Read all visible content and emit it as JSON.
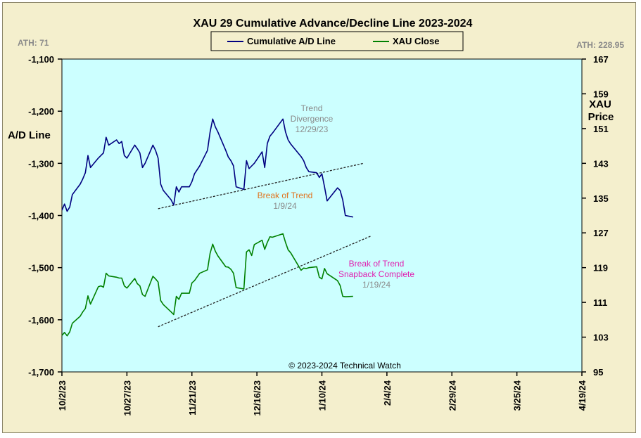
{
  "chart_data": {
    "type": "line",
    "title": "XAU 29 Cumulative  Advance/Decline  Line  2023-2024",
    "legend": {
      "placement": "top-center",
      "entries": [
        "Cumulative A/D Line",
        "XAU Close"
      ]
    },
    "left_axis": {
      "label": "A/D Line",
      "range": [
        -1700,
        -1100
      ],
      "ticks": [
        "-1,100",
        "-1,200",
        "-1,300",
        "-1,400",
        "-1,500",
        "-1,600",
        "-1,700"
      ]
    },
    "right_axis": {
      "label_line1": "XAU",
      "label_line2": "Price",
      "range": [
        95,
        167
      ],
      "ticks": [
        "167",
        "159",
        "151",
        "143",
        "135",
        "127",
        "119",
        "111",
        "103",
        "95"
      ]
    },
    "x_axis": {
      "range": [
        "2023-10-02",
        "2024-04-19"
      ],
      "ticks": [
        "10/2/23",
        "10/27/23",
        "11/21/23",
        "12/16/23",
        "1/10/24",
        "2/4/24",
        "2/29/24",
        "3/25/24",
        "4/19/24"
      ]
    },
    "ath_left": "ATH: 71",
    "ath_right": "ATH: 228.95",
    "copyright": "© 2023-2024  Technical  Watch",
    "series": [
      {
        "name": "Cumulative A/D Line",
        "axis": "left",
        "color": "#000080",
        "points": [
          [
            "2023-10-02",
            -1390
          ],
          [
            "2023-10-03",
            -1378
          ],
          [
            "2023-10-04",
            -1392
          ],
          [
            "2023-10-05",
            -1384
          ],
          [
            "2023-10-06",
            -1360
          ],
          [
            "2023-10-09",
            -1340
          ],
          [
            "2023-10-10",
            -1330
          ],
          [
            "2023-10-11",
            -1318
          ],
          [
            "2023-10-12",
            -1285
          ],
          [
            "2023-10-13",
            -1308
          ],
          [
            "2023-10-16",
            -1290
          ],
          [
            "2023-10-17",
            -1285
          ],
          [
            "2023-10-18",
            -1280
          ],
          [
            "2023-10-19",
            -1250
          ],
          [
            "2023-10-20",
            -1265
          ],
          [
            "2023-10-23",
            -1255
          ],
          [
            "2023-10-24",
            -1262
          ],
          [
            "2023-10-25",
            -1258
          ],
          [
            "2023-10-26",
            -1285
          ],
          [
            "2023-10-27",
            -1290
          ],
          [
            "2023-10-30",
            -1265
          ],
          [
            "2023-10-31",
            -1272
          ],
          [
            "2023-11-01",
            -1280
          ],
          [
            "2023-11-02",
            -1308
          ],
          [
            "2023-11-03",
            -1300
          ],
          [
            "2023-11-06",
            -1265
          ],
          [
            "2023-11-07",
            -1275
          ],
          [
            "2023-11-08",
            -1290
          ],
          [
            "2023-11-09",
            -1340
          ],
          [
            "2023-11-10",
            -1352
          ],
          [
            "2023-11-13",
            -1370
          ],
          [
            "2023-11-14",
            -1380
          ],
          [
            "2023-11-15",
            -1345
          ],
          [
            "2023-11-16",
            -1355
          ],
          [
            "2023-11-17",
            -1345
          ],
          [
            "2023-11-20",
            -1345
          ],
          [
            "2023-11-21",
            -1335
          ],
          [
            "2023-11-22",
            -1320
          ],
          [
            "2023-11-24",
            -1305
          ],
          [
            "2023-11-27",
            -1275
          ],
          [
            "2023-11-28",
            -1240
          ],
          [
            "2023-11-29",
            -1215
          ],
          [
            "2023-11-30",
            -1230
          ],
          [
            "2023-12-01",
            -1240
          ],
          [
            "2023-12-04",
            -1275
          ],
          [
            "2023-12-05",
            -1288
          ],
          [
            "2023-12-06",
            -1295
          ],
          [
            "2023-12-07",
            -1305
          ],
          [
            "2023-12-08",
            -1345
          ],
          [
            "2023-12-11",
            -1350
          ],
          [
            "2023-12-12",
            -1295
          ],
          [
            "2023-12-13",
            -1310
          ],
          [
            "2023-12-14",
            -1305
          ],
          [
            "2023-12-15",
            -1300
          ],
          [
            "2023-12-18",
            -1278
          ],
          [
            "2023-12-19",
            -1308
          ],
          [
            "2023-12-20",
            -1262
          ],
          [
            "2023-12-21",
            -1248
          ],
          [
            "2023-12-22",
            -1242
          ],
          [
            "2023-12-26",
            -1215
          ],
          [
            "2023-12-27",
            -1240
          ],
          [
            "2023-12-28",
            -1255
          ],
          [
            "2023-12-29",
            -1263
          ],
          [
            "2024-01-02",
            -1287
          ],
          [
            "2024-01-03",
            -1295
          ],
          [
            "2024-01-04",
            -1308
          ],
          [
            "2024-01-05",
            -1316
          ],
          [
            "2024-01-08",
            -1318
          ],
          [
            "2024-01-09",
            -1327
          ],
          [
            "2024-01-10",
            -1320
          ],
          [
            "2024-01-11",
            -1345
          ],
          [
            "2024-01-12",
            -1372
          ],
          [
            "2024-01-16",
            -1347
          ],
          [
            "2024-01-17",
            -1352
          ],
          [
            "2024-01-18",
            -1370
          ],
          [
            "2024-01-19",
            -1400
          ],
          [
            "2024-01-22",
            -1403
          ]
        ]
      },
      {
        "name": "XAU Close",
        "axis": "right",
        "color": "#008000",
        "points": [
          [
            "2023-10-02",
            103.4
          ],
          [
            "2023-10-03",
            104.1
          ],
          [
            "2023-10-04",
            103.3
          ],
          [
            "2023-10-05",
            104.2
          ],
          [
            "2023-10-06",
            106.2
          ],
          [
            "2023-10-09",
            107.8
          ],
          [
            "2023-10-10",
            108.8
          ],
          [
            "2023-10-11",
            109.6
          ],
          [
            "2023-10-12",
            112.5
          ],
          [
            "2023-10-13",
            110.6
          ],
          [
            "2023-10-16",
            114.6
          ],
          [
            "2023-10-17",
            114.8
          ],
          [
            "2023-10-18",
            114.5
          ],
          [
            "2023-10-19",
            117.7
          ],
          [
            "2023-10-20",
            117.1
          ],
          [
            "2023-10-23",
            116.8
          ],
          [
            "2023-10-24",
            116.6
          ],
          [
            "2023-10-25",
            116.6
          ],
          [
            "2023-10-26",
            114.8
          ],
          [
            "2023-10-27",
            114.3
          ],
          [
            "2023-10-30",
            116.5
          ],
          [
            "2023-10-31",
            115.3
          ],
          [
            "2023-11-01",
            114.8
          ],
          [
            "2023-11-02",
            112.8
          ],
          [
            "2023-11-03",
            112.4
          ],
          [
            "2023-11-06",
            117.0
          ],
          [
            "2023-11-07",
            116.4
          ],
          [
            "2023-11-08",
            115.7
          ],
          [
            "2023-11-09",
            111.4
          ],
          [
            "2023-11-10",
            110.5
          ],
          [
            "2023-11-13",
            108.8
          ],
          [
            "2023-11-14",
            108.2
          ],
          [
            "2023-11-15",
            112.4
          ],
          [
            "2023-11-16",
            111.7
          ],
          [
            "2023-11-17",
            113.1
          ],
          [
            "2023-11-20",
            113.1
          ],
          [
            "2023-11-21",
            115.5
          ],
          [
            "2023-11-22",
            116.0
          ],
          [
            "2023-11-24",
            117.7
          ],
          [
            "2023-11-27",
            118.5
          ],
          [
            "2023-11-28",
            122.3
          ],
          [
            "2023-11-29",
            124.4
          ],
          [
            "2023-11-30",
            122.8
          ],
          [
            "2023-12-01",
            121.7
          ],
          [
            "2023-12-04",
            119.2
          ],
          [
            "2023-12-05",
            119.1
          ],
          [
            "2023-12-06",
            118.6
          ],
          [
            "2023-12-07",
            117.7
          ],
          [
            "2023-12-08",
            114.4
          ],
          [
            "2023-12-11",
            114.1
          ],
          [
            "2023-12-12",
            122.6
          ],
          [
            "2023-12-13",
            123.1
          ],
          [
            "2023-12-14",
            121.8
          ],
          [
            "2023-12-15",
            124.3
          ],
          [
            "2023-12-18",
            125.3
          ],
          [
            "2023-12-19",
            123.2
          ],
          [
            "2023-12-20",
            124.8
          ],
          [
            "2023-12-21",
            126.1
          ],
          [
            "2023-12-22",
            126.0
          ],
          [
            "2023-12-26",
            126.8
          ],
          [
            "2023-12-27",
            124.8
          ],
          [
            "2023-12-28",
            123.1
          ],
          [
            "2023-12-29",
            122.4
          ],
          [
            "2024-01-02",
            118.4
          ],
          [
            "2024-01-03",
            118.9
          ],
          [
            "2024-01-04",
            118.8
          ],
          [
            "2024-01-05",
            119.0
          ],
          [
            "2024-01-08",
            119.2
          ],
          [
            "2024-01-09",
            116.8
          ],
          [
            "2024-01-10",
            116.4
          ],
          [
            "2024-01-11",
            118.8
          ],
          [
            "2024-01-12",
            117.6
          ],
          [
            "2024-01-16",
            116.0
          ],
          [
            "2024-01-17",
            114.9
          ],
          [
            "2024-01-18",
            112.4
          ],
          [
            "2024-01-19",
            112.3
          ],
          [
            "2024-01-22",
            112.4
          ]
        ]
      }
    ],
    "trendlines": [
      {
        "name": "ad-trendline",
        "axis": "left",
        "from": [
          "2023-11-08",
          -1387
        ],
        "to": [
          "2024-01-26",
          -1300
        ]
      },
      {
        "name": "xau-trendline",
        "axis": "right",
        "from": [
          "2023-11-08",
          105.4
        ],
        "to": [
          "2024-01-29",
          126.3
        ]
      }
    ],
    "annotations": [
      {
        "name": "trend-divergence",
        "lines": [
          "Trend",
          "Divergence",
          "12/29/23"
        ],
        "colors": [
          "gray",
          "gray",
          "gray"
        ]
      },
      {
        "name": "break-of-trend",
        "lines": [
          "Break of Trend",
          "1/9/24"
        ],
        "colors": [
          "orange",
          "gray"
        ]
      },
      {
        "name": "snapback",
        "lines": [
          "Break of Trend",
          "Snapback Complete",
          "1/19/24"
        ],
        "colors": [
          "pink",
          "pink",
          "gray"
        ]
      }
    ]
  }
}
